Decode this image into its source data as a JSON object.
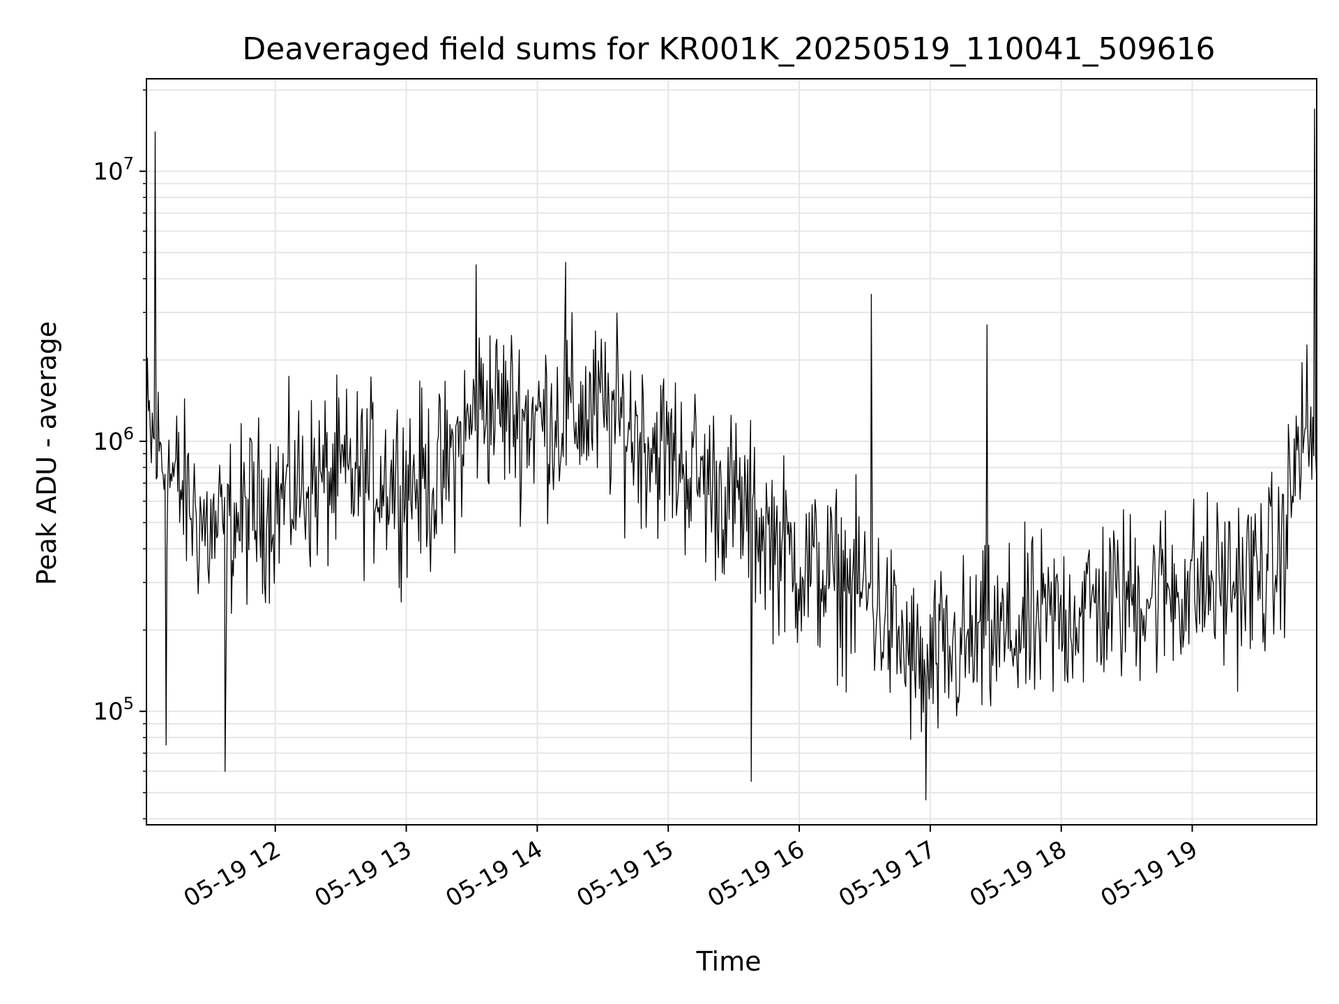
{
  "chart_data": {
    "type": "line",
    "title": "Deaveraged field sums for KR001K_20250519_110041_509616",
    "xlabel": "Time",
    "ylabel": "Peak ADU - average",
    "yscale": "log",
    "ylim": [
      38000,
      22000000
    ],
    "xlim": [
      "2025-05-19 11:01",
      "2025-05-19 19:57"
    ],
    "grid": true,
    "legend": "none",
    "line_color": "#000000",
    "x_ticks": [
      "05-19 12",
      "05-19 13",
      "05-19 14",
      "05-19 15",
      "05-19 16",
      "05-19 17",
      "05-19 18",
      "05-19 19"
    ],
    "y_ticks": [
      {
        "value": 100000,
        "base": "10",
        "exp": "5"
      },
      {
        "value": 1000000,
        "base": "10",
        "exp": "6"
      },
      {
        "value": 10000000,
        "base": "10",
        "exp": "7"
      }
    ],
    "trend": [
      {
        "x": "2025-05-19 11:01",
        "y": 1100000
      },
      {
        "x": "2025-05-19 11:10",
        "y": 800000
      },
      {
        "x": "2025-05-19 11:30",
        "y": 450000
      },
      {
        "x": "2025-05-19 11:50",
        "y": 550000
      },
      {
        "x": "2025-05-19 12:15",
        "y": 700000
      },
      {
        "x": "2025-05-19 12:45",
        "y": 750000
      },
      {
        "x": "2025-05-19 13:15",
        "y": 700000
      },
      {
        "x": "2025-05-19 13:35",
        "y": 1400000
      },
      {
        "x": "2025-05-19 14:00",
        "y": 1200000
      },
      {
        "x": "2025-05-19 14:30",
        "y": 1300000
      },
      {
        "x": "2025-05-19 15:00",
        "y": 900000
      },
      {
        "x": "2025-05-19 15:30",
        "y": 600000
      },
      {
        "x": "2025-05-19 16:00",
        "y": 350000
      },
      {
        "x": "2025-05-19 16:30",
        "y": 280000
      },
      {
        "x": "2025-05-19 16:55",
        "y": 140000
      },
      {
        "x": "2025-05-19 17:15",
        "y": 170000
      },
      {
        "x": "2025-05-19 17:45",
        "y": 200000
      },
      {
        "x": "2025-05-19 18:15",
        "y": 250000
      },
      {
        "x": "2025-05-19 18:45",
        "y": 280000
      },
      {
        "x": "2025-05-19 19:20",
        "y": 300000
      },
      {
        "x": "2025-05-19 19:40",
        "y": 350000
      },
      {
        "x": "2025-05-19 19:50",
        "y": 1100000
      },
      {
        "x": "2025-05-19 19:57",
        "y": 1000000
      }
    ],
    "spikes": [
      {
        "x": "2025-05-19 11:05",
        "y": 14000000
      },
      {
        "x": "2025-05-19 11:10",
        "y": 75000
      },
      {
        "x": "2025-05-19 11:37",
        "y": 60000
      },
      {
        "x": "2025-05-19 13:32",
        "y": 4500000
      },
      {
        "x": "2025-05-19 14:13",
        "y": 4600000
      },
      {
        "x": "2025-05-19 15:38",
        "y": 55000
      },
      {
        "x": "2025-05-19 16:33",
        "y": 3500000
      },
      {
        "x": "2025-05-19 16:58",
        "y": 47000
      },
      {
        "x": "2025-05-19 17:26",
        "y": 2700000
      },
      {
        "x": "2025-05-19 19:56",
        "y": 17000000
      }
    ],
    "noise_spread_decades": 0.42,
    "n_points": 1200
  }
}
